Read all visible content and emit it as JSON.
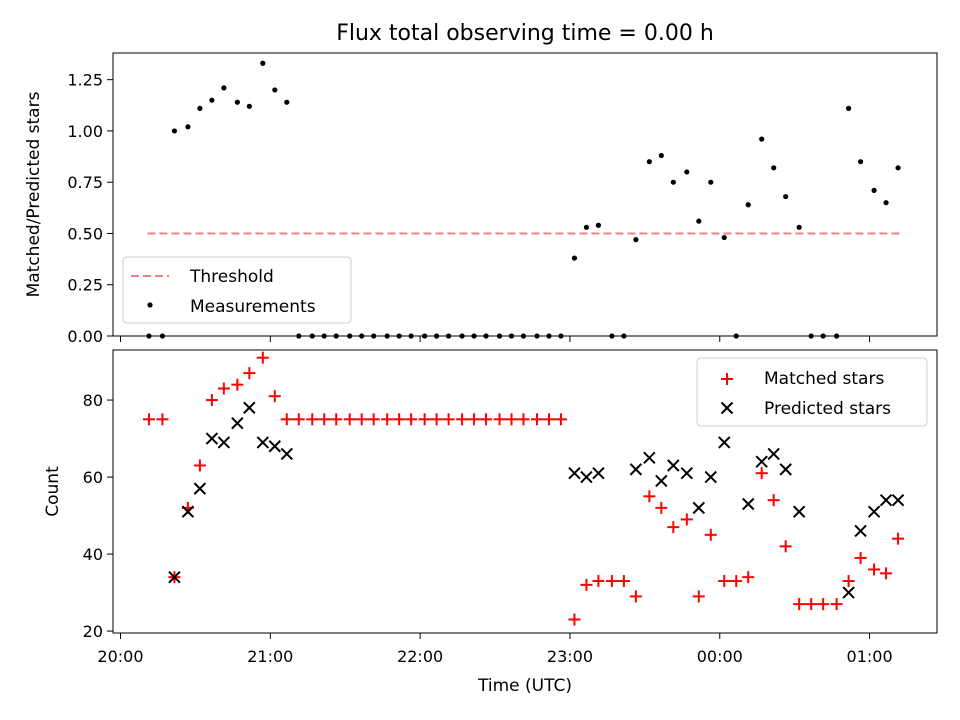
{
  "chart_data": [
    {
      "type": "scatter",
      "title": "Flux total observing time = 0.00 h",
      "xlabel": "",
      "ylabel": "Matched/Predicted stars",
      "ylim": [
        0,
        1.38
      ],
      "yticks": [
        "0.00",
        "0.25",
        "0.50",
        "0.75",
        "1.00",
        "1.25"
      ],
      "x_axis": "shared time axis (hours since 20:00 UTC)",
      "legend_position": "lower-left",
      "threshold": {
        "name": "Threshold",
        "y": 0.5,
        "x_range": [
          0.18,
          5.2
        ],
        "color": "#f08080",
        "style": "dashed"
      },
      "series": [
        {
          "name": "Measurements",
          "color": "#000000",
          "marker": "dot",
          "points": [
            [
              0.19,
              0.0
            ],
            [
              0.28,
              0.0
            ],
            [
              0.36,
              1.0
            ],
            [
              0.45,
              1.02
            ],
            [
              0.53,
              1.11
            ],
            [
              0.61,
              1.15
            ],
            [
              0.69,
              1.21
            ],
            [
              0.78,
              1.14
            ],
            [
              0.86,
              1.12
            ],
            [
              0.95,
              1.33
            ],
            [
              1.03,
              1.2
            ],
            [
              1.11,
              1.14
            ],
            [
              1.19,
              0.0
            ],
            [
              1.28,
              0.0
            ],
            [
              1.36,
              0.0
            ],
            [
              1.44,
              0.0
            ],
            [
              1.53,
              0.0
            ],
            [
              1.61,
              0.0
            ],
            [
              1.69,
              0.0
            ],
            [
              1.78,
              0.0
            ],
            [
              1.86,
              0.0
            ],
            [
              1.94,
              0.0
            ],
            [
              2.03,
              0.0
            ],
            [
              2.11,
              0.0
            ],
            [
              2.19,
              0.0
            ],
            [
              2.28,
              0.0
            ],
            [
              2.36,
              0.0
            ],
            [
              2.44,
              0.0
            ],
            [
              2.53,
              0.0
            ],
            [
              2.61,
              0.0
            ],
            [
              2.69,
              0.0
            ],
            [
              2.78,
              0.0
            ],
            [
              2.86,
              0.0
            ],
            [
              2.94,
              0.0
            ],
            [
              3.03,
              0.38
            ],
            [
              3.11,
              0.53
            ],
            [
              3.19,
              0.54
            ],
            [
              3.28,
              0.0
            ],
            [
              3.36,
              0.0
            ],
            [
              3.44,
              0.47
            ],
            [
              3.53,
              0.85
            ],
            [
              3.61,
              0.88
            ],
            [
              3.69,
              0.75
            ],
            [
              3.78,
              0.8
            ],
            [
              3.86,
              0.56
            ],
            [
              3.94,
              0.75
            ],
            [
              4.03,
              0.48
            ],
            [
              4.11,
              0.0
            ],
            [
              4.19,
              0.64
            ],
            [
              4.28,
              0.96
            ],
            [
              4.36,
              0.82
            ],
            [
              4.44,
              0.68
            ],
            [
              4.53,
              0.53
            ],
            [
              4.61,
              0.0
            ],
            [
              4.69,
              0.0
            ],
            [
              4.78,
              0.0
            ],
            [
              4.86,
              1.11
            ],
            [
              4.94,
              0.85
            ],
            [
              5.03,
              0.71
            ],
            [
              5.11,
              0.65
            ],
            [
              5.19,
              0.82
            ]
          ]
        }
      ]
    },
    {
      "type": "scatter",
      "title": "",
      "xlabel": "Time (UTC)",
      "ylabel": "Count",
      "ylim": [
        19.5,
        93
      ],
      "yticks": [
        "20",
        "40",
        "60",
        "80"
      ],
      "xticks": [
        "20:00",
        "21:00",
        "22:00",
        "23:00",
        "00:00",
        "01:00"
      ],
      "x_axis": "hours since 20:00 UTC",
      "xlim": [
        -0.05,
        5.45
      ],
      "legend_position": "top-right",
      "series": [
        {
          "name": "Matched stars",
          "color": "#ff0000",
          "marker": "plus",
          "points": [
            [
              0.19,
              75
            ],
            [
              0.28,
              75
            ],
            [
              0.36,
              34
            ],
            [
              0.45,
              52
            ],
            [
              0.53,
              63
            ],
            [
              0.61,
              80
            ],
            [
              0.69,
              83
            ],
            [
              0.78,
              84
            ],
            [
              0.86,
              87
            ],
            [
              0.95,
              91
            ],
            [
              1.03,
              81
            ],
            [
              1.11,
              75
            ],
            [
              1.19,
              75
            ],
            [
              1.28,
              75
            ],
            [
              1.36,
              75
            ],
            [
              1.44,
              75
            ],
            [
              1.53,
              75
            ],
            [
              1.61,
              75
            ],
            [
              1.69,
              75
            ],
            [
              1.78,
              75
            ],
            [
              1.86,
              75
            ],
            [
              1.94,
              75
            ],
            [
              2.03,
              75
            ],
            [
              2.11,
              75
            ],
            [
              2.19,
              75
            ],
            [
              2.28,
              75
            ],
            [
              2.36,
              75
            ],
            [
              2.44,
              75
            ],
            [
              2.53,
              75
            ],
            [
              2.61,
              75
            ],
            [
              2.69,
              75
            ],
            [
              2.78,
              75
            ],
            [
              2.86,
              75
            ],
            [
              2.94,
              75
            ],
            [
              3.03,
              23
            ],
            [
              3.11,
              32
            ],
            [
              3.19,
              33
            ],
            [
              3.28,
              33
            ],
            [
              3.36,
              33
            ],
            [
              3.44,
              29
            ],
            [
              3.53,
              55
            ],
            [
              3.61,
              52
            ],
            [
              3.69,
              47
            ],
            [
              3.78,
              49
            ],
            [
              3.86,
              29
            ],
            [
              3.94,
              45
            ],
            [
              4.03,
              33
            ],
            [
              4.11,
              33
            ],
            [
              4.19,
              34
            ],
            [
              4.28,
              61
            ],
            [
              4.36,
              54
            ],
            [
              4.44,
              42
            ],
            [
              4.53,
              27
            ],
            [
              4.61,
              27
            ],
            [
              4.69,
              27
            ],
            [
              4.78,
              27
            ],
            [
              4.86,
              33
            ],
            [
              4.94,
              39
            ],
            [
              5.03,
              36
            ],
            [
              5.11,
              35
            ],
            [
              5.19,
              44
            ]
          ]
        },
        {
          "name": "Predicted stars",
          "color": "#000000",
          "marker": "x",
          "points": [
            [
              0.36,
              34
            ],
            [
              0.45,
              51
            ],
            [
              0.53,
              57
            ],
            [
              0.61,
              70
            ],
            [
              0.69,
              69
            ],
            [
              0.78,
              74
            ],
            [
              0.86,
              78
            ],
            [
              0.95,
              69
            ],
            [
              1.03,
              68
            ],
            [
              1.11,
              66
            ],
            [
              3.03,
              61
            ],
            [
              3.11,
              60
            ],
            [
              3.19,
              61
            ],
            [
              3.44,
              62
            ],
            [
              3.53,
              65
            ],
            [
              3.61,
              59
            ],
            [
              3.69,
              63
            ],
            [
              3.78,
              61
            ],
            [
              3.86,
              52
            ],
            [
              3.94,
              60
            ],
            [
              4.03,
              69
            ],
            [
              4.19,
              53
            ],
            [
              4.28,
              64
            ],
            [
              4.36,
              66
            ],
            [
              4.44,
              62
            ],
            [
              4.53,
              51
            ],
            [
              4.86,
              30
            ],
            [
              4.94,
              46
            ],
            [
              5.03,
              51
            ],
            [
              5.11,
              54
            ],
            [
              5.19,
              54
            ]
          ]
        }
      ]
    }
  ]
}
